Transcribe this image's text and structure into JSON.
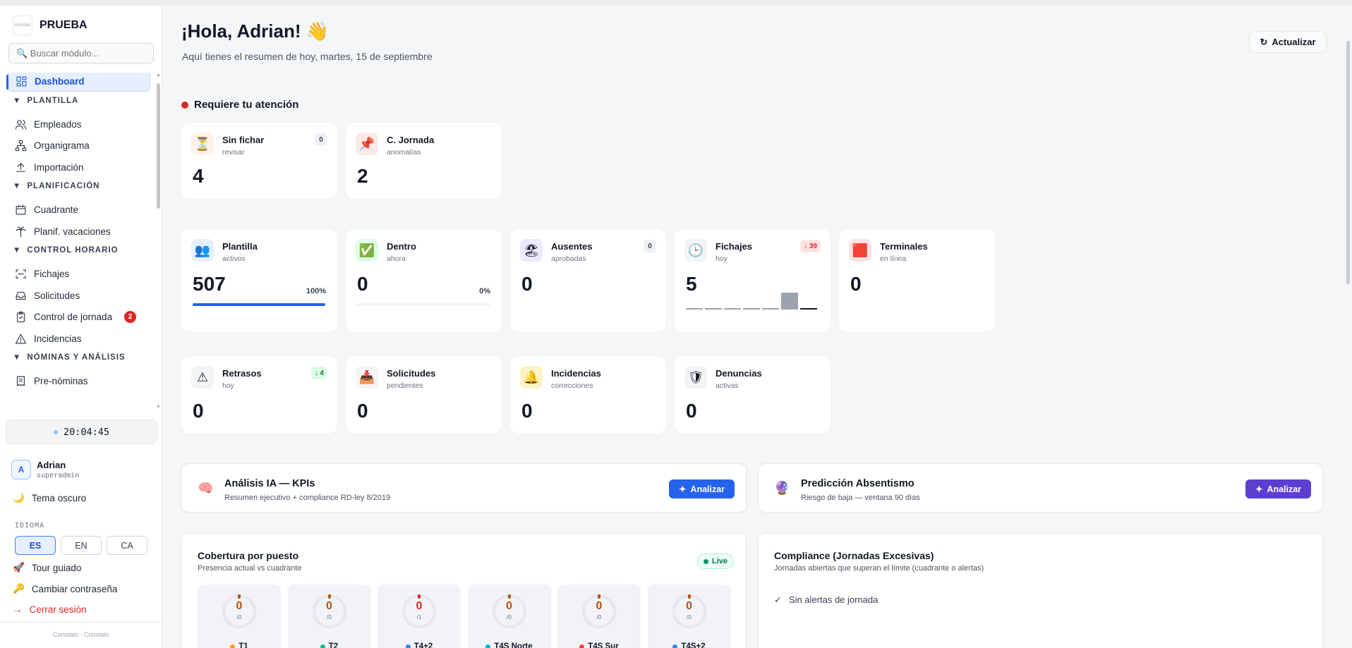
{
  "app": {
    "name": "PRUEBA",
    "logo_text": "constato"
  },
  "sidebar": {
    "search_placeholder": "🔍 Buscar módulo...",
    "nav": [
      {
        "type": "item",
        "label": "Dashboard",
        "icon": "dashboard-icon",
        "active": true
      },
      {
        "type": "section",
        "label": "PLANTILLA"
      },
      {
        "type": "item",
        "label": "Empleados",
        "icon": "users-icon"
      },
      {
        "type": "item",
        "label": "Organigrama",
        "icon": "org-chart-icon"
      },
      {
        "type": "item",
        "label": "Importación",
        "icon": "upload-icon"
      },
      {
        "type": "section",
        "label": "PLANIFICACIÓN"
      },
      {
        "type": "item",
        "label": "Cuadrante",
        "icon": "calendar-icon"
      },
      {
        "type": "item",
        "label": "Planif. vacaciones",
        "icon": "palm-tree-icon"
      },
      {
        "type": "section",
        "label": "CONTROL HORARIO"
      },
      {
        "type": "item",
        "label": "Fichajes",
        "icon": "scan-icon"
      },
      {
        "type": "item",
        "label": "Solicitudes",
        "icon": "inbox-icon"
      },
      {
        "type": "item",
        "label": "Control de jornada",
        "icon": "clipboard-check-icon",
        "badge": "2"
      },
      {
        "type": "item",
        "label": "Incidencias",
        "icon": "warning-icon"
      },
      {
        "type": "section",
        "label": "NÓMINAS Y ANÁLISIS"
      },
      {
        "type": "item",
        "label": "Pre-nóminas",
        "icon": "receipt-icon"
      }
    ],
    "clock": "20:04:45",
    "user": {
      "initial": "A",
      "name": "Adrian",
      "role": "superadmin"
    },
    "theme_toggle": "Tema oscuro",
    "language_label": "IDIOMA",
    "languages": [
      "ES",
      "EN",
      "CA"
    ],
    "active_language": "ES",
    "tour": "Tour guiado",
    "change_password": "Cambiar contraseña",
    "logout": "Cerrar sesión",
    "footer": "Constato · Constato"
  },
  "header": {
    "greeting": "¡Hola, Adrian! 👋",
    "subtitle": "Aquí tienes el resumen de hoy, martes, 15 de septiembre",
    "refresh_label": "Actualizar"
  },
  "attention": {
    "title": "Requiere tu atención",
    "cards": [
      {
        "title": "Sin fichar",
        "subtitle": "revisar",
        "value": "4",
        "badge": "0",
        "icon": "hourglass-icon",
        "accent": "#fff1e6"
      },
      {
        "title": "C. Jornada",
        "subtitle": "anomalías",
        "value": "2",
        "icon": "pin-icon",
        "accent": "#fde8e8"
      }
    ]
  },
  "kpis_row1": [
    {
      "title": "Plantilla",
      "subtitle": "activos",
      "value": "507",
      "percent": "100%",
      "progress": 1.0,
      "icon": "people-icon",
      "accent": "#e6efff"
    },
    {
      "title": "Dentro",
      "subtitle": "ahora",
      "value": "0",
      "percent": "0%",
      "progress": 0.0,
      "icon": "check-icon",
      "accent": "#dcfce7"
    },
    {
      "title": "Ausentes",
      "subtitle": "aprobadas",
      "value": "0",
      "badge": "0",
      "icon": "beach-icon",
      "accent": "#ede9fe"
    },
    {
      "title": "Fichajes",
      "subtitle": "hoy",
      "value": "5",
      "badge": "↓ 39",
      "badge_color": "red",
      "icon": "clock-icon",
      "accent": "#f3f4f6",
      "trend": [
        0,
        0,
        0,
        0,
        0,
        5,
        0
      ]
    },
    {
      "title": "Terminales",
      "subtitle": "en línea",
      "value": "0",
      "icon": "terminal-icon",
      "accent": "#fee2e2"
    }
  ],
  "kpis_row2": [
    {
      "title": "Retrasos",
      "subtitle": "hoy",
      "value": "0",
      "badge": "↓ 4",
      "badge_color": "green",
      "icon": "alert-icon",
      "accent": "#f3f4f6"
    },
    {
      "title": "Solicitudes",
      "subtitle": "pendientes",
      "value": "0",
      "icon": "inbox-tray-icon",
      "accent": "#f3f4f6"
    },
    {
      "title": "Incidencias",
      "subtitle": "correcciones",
      "value": "0",
      "icon": "bell-icon",
      "accent": "#fef3c7"
    },
    {
      "title": "Denuncias",
      "subtitle": "activas",
      "value": "0",
      "icon": "shield-icon",
      "accent": "#f3f4f6"
    }
  ],
  "ai": {
    "kpi": {
      "title": "Análisis IA — KPIs",
      "subtitle": "Resumen ejecutivo + compliance RD-ley 8/2019",
      "button": "Analizar",
      "icon": "brain-icon",
      "color": "#2563eb"
    },
    "absentismo": {
      "title": "Predicción Absentismo",
      "subtitle": "Riesgo de baja — ventana 90 días",
      "button": "Analizar",
      "icon": "crystal-ball-icon",
      "color": "#5b3fd1"
    }
  },
  "coverage": {
    "title": "Cobertura por puesto",
    "subtitle": "Presencia actual vs cuadrante",
    "live_label": "Live",
    "posts": [
      {
        "name": "T1",
        "value": "0",
        "of": "/0",
        "dot": "#f59e0b"
      },
      {
        "name": "T2",
        "value": "0",
        "of": "/0",
        "dot": "#10b981"
      },
      {
        "name": "T4+2",
        "value": "0",
        "of": "/1",
        "dot": "#3b82f6",
        "alert": true
      },
      {
        "name": "T4S Norte",
        "value": "0",
        "of": "/0",
        "dot": "#06b6d4"
      },
      {
        "name": "T4S Sur",
        "value": "0",
        "of": "/0",
        "dot": "#ef4444"
      },
      {
        "name": "T4S+2",
        "value": "0",
        "of": "/0",
        "dot": "#3b82f6"
      }
    ]
  },
  "compliance": {
    "title": "Compliance (Jornadas Excesivas)",
    "subtitle": "Jornadas abiertas que superan el límite (cuadrante o alertas)",
    "empty": "Sin alertas de jornada",
    "empty_icon": "✓"
  }
}
